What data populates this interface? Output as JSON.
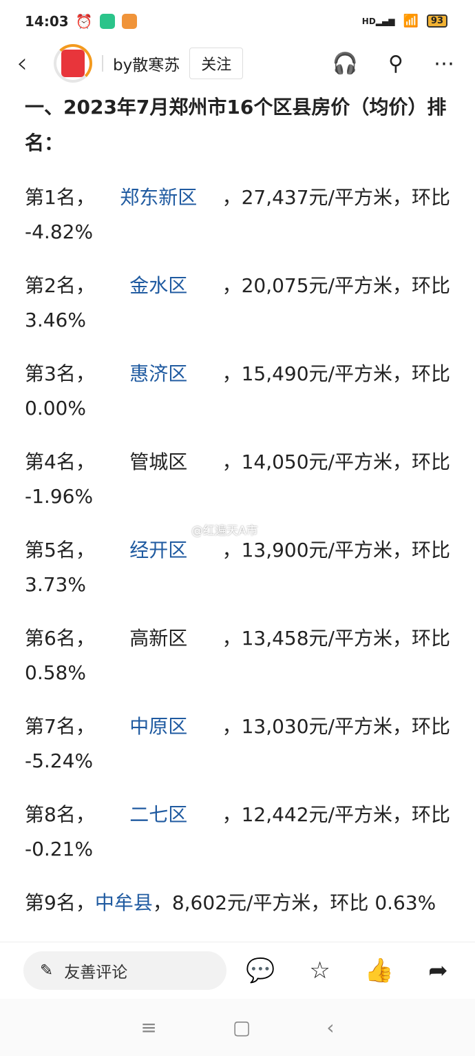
{
  "status": {
    "time": "14:03",
    "battery": "93",
    "network": "HD"
  },
  "header": {
    "author": "by散寒苏",
    "follow": "关注"
  },
  "article": {
    "title": "一、2023年7月郑州市16个区县房价（均价）排名：",
    "entries": [
      {
        "rank": "第1名，",
        "district": "郑东新区",
        "linked": true,
        "rest": "，27,437元/平方米，环比",
        "change": "-4.82%"
      },
      {
        "rank": "第2名，",
        "district": "金水区",
        "linked": true,
        "rest": "，20,075元/平方米，环比",
        "change": "3.46%"
      },
      {
        "rank": "第3名，",
        "district": "惠济区",
        "linked": true,
        "rest": "，15,490元/平方米，环比",
        "change": "0.00%"
      },
      {
        "rank": "第4名，",
        "district": "管城区",
        "linked": false,
        "rest": "，14,050元/平方米，环比",
        "change": "-1.96%"
      },
      {
        "rank": "第5名，",
        "district": "经开区",
        "linked": true,
        "rest": "，13,900元/平方米，环比",
        "change": "3.73%"
      },
      {
        "rank": "第6名，",
        "district": "高新区",
        "linked": false,
        "rest": "，13,458元/平方米，环比",
        "change": "0.58%"
      },
      {
        "rank": "第7名，",
        "district": "中原区",
        "linked": true,
        "rest": "，13,030元/平方米，环比",
        "change": "-5.24%"
      },
      {
        "rank": "第8名，",
        "district": "二七区",
        "linked": true,
        "rest": "，12,442元/平方米，环比",
        "change": "-0.21%"
      },
      {
        "rank": "第9名，",
        "district": "中牟县",
        "linked": true,
        "rest": "，8,602元/平方米，环比 0.63%",
        "change": ""
      }
    ]
  },
  "watermark": "@红遍天A市",
  "bottom": {
    "comment_placeholder": "友善评论"
  },
  "colors": {
    "link": "#1f5aa0",
    "avatar_ring": "#f39a1e"
  }
}
